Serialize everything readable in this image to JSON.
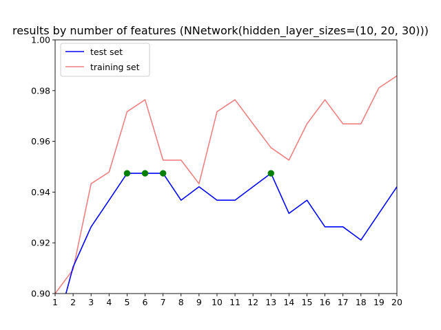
{
  "chart_data": {
    "type": "line",
    "title": "results by number of features (NNetwork(hidden_layer_sizes=(10, 20, 30)))",
    "xlabel": "",
    "ylabel": "",
    "xlim": [
      1,
      20
    ],
    "ylim": [
      0.9,
      1.0
    ],
    "xticks": [
      1,
      2,
      3,
      4,
      5,
      6,
      7,
      8,
      9,
      10,
      11,
      12,
      13,
      14,
      15,
      16,
      17,
      18,
      19,
      20
    ],
    "xtick_labels": [
      "1",
      "2",
      "3",
      "4",
      "5",
      "6",
      "7",
      "8",
      "9",
      "10",
      "11",
      "12",
      "13",
      "14",
      "15",
      "16",
      "17",
      "18",
      "19",
      "20"
    ],
    "yticks": [
      0.9,
      0.92,
      0.94,
      0.96,
      0.98,
      1.0
    ],
    "ytick_labels": [
      "0.90",
      "0.92",
      "0.94",
      "0.96",
      "0.98",
      "1.00"
    ],
    "legend_position": "top-left",
    "grid": false,
    "series": [
      {
        "name": "test set",
        "color": "#0000ff",
        "x": [
          1,
          2,
          3,
          4,
          5,
          6,
          7,
          8,
          9,
          10,
          11,
          12,
          13,
          14,
          15,
          16,
          17,
          18,
          19,
          20
        ],
        "y": [
          0.8842,
          0.9105,
          0.9263,
          0.9368,
          0.9474,
          0.9474,
          0.9474,
          0.9368,
          0.9421,
          0.9368,
          0.9368,
          0.9421,
          0.9474,
          0.9316,
          0.9368,
          0.9263,
          0.9263,
          0.9211,
          0.9316,
          0.9421
        ]
      },
      {
        "name": "training set",
        "color": "#f08080",
        "x": [
          1,
          2,
          3,
          4,
          5,
          6,
          7,
          8,
          9,
          10,
          11,
          12,
          13,
          14,
          15,
          16,
          17,
          18,
          19,
          20
        ],
        "y": [
          0.9,
          0.9095,
          0.9433,
          0.9479,
          0.9717,
          0.9764,
          0.9526,
          0.9526,
          0.9433,
          0.9717,
          0.9764,
          0.9669,
          0.9575,
          0.9526,
          0.9669,
          0.9764,
          0.9669,
          0.9669,
          0.9811,
          0.9858
        ]
      }
    ],
    "highlight_points": {
      "color": "#008000",
      "x": [
        5,
        6,
        7,
        13
      ],
      "y": [
        0.9474,
        0.9474,
        0.9474,
        0.9474
      ]
    }
  }
}
